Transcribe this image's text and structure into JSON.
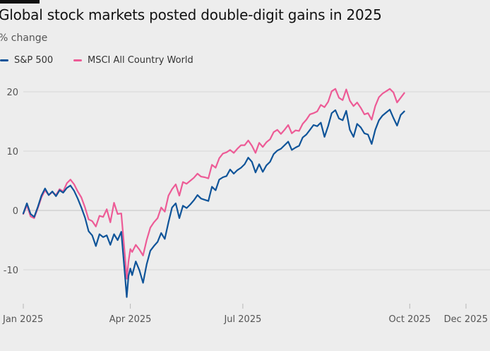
{
  "chart_data": {
    "type": "line",
    "title": "Global stock markets posted double-digit gains in 2025",
    "ylabel": "% change",
    "ylim": [
      -15,
      21
    ],
    "yticks": [
      20,
      10,
      0,
      -10
    ],
    "ytick_labels": [
      "20",
      "10",
      "0",
      "-10"
    ],
    "xticks": [
      0,
      59,
      121,
      213,
      244
    ],
    "xtick_labels": [
      "Jan 2025",
      "Apr 2025",
      "Jul 2025",
      "Oct 2025",
      "Dec 2025"
    ],
    "grid": true,
    "legend": "top-left",
    "x_unit": "trading day index",
    "series": [
      {
        "name": "S&P 500",
        "color": "#0f5499",
        "points": [
          [
            0,
            -0.5
          ],
          [
            2,
            1.2
          ],
          [
            4,
            -0.6
          ],
          [
            6,
            -1.1
          ],
          [
            8,
            0.6
          ],
          [
            10,
            2.5
          ],
          [
            12,
            3.7
          ],
          [
            14,
            2.6
          ],
          [
            16,
            3.2
          ],
          [
            18,
            2.4
          ],
          [
            20,
            3.4
          ],
          [
            22,
            3.0
          ],
          [
            24,
            3.8
          ],
          [
            26,
            4.2
          ],
          [
            28,
            3.3
          ],
          [
            30,
            2.0
          ],
          [
            32,
            0.5
          ],
          [
            34,
            -1.2
          ],
          [
            36,
            -3.5
          ],
          [
            38,
            -4.2
          ],
          [
            40,
            -6.0
          ],
          [
            42,
            -4.0
          ],
          [
            44,
            -4.5
          ],
          [
            46,
            -4.2
          ],
          [
            48,
            -5.8
          ],
          [
            50,
            -4.0
          ],
          [
            52,
            -5.0
          ],
          [
            54,
            -3.6
          ],
          [
            56,
            -10.8
          ],
          [
            57,
            -14.6
          ],
          [
            58,
            -11.0
          ],
          [
            59,
            -9.8
          ],
          [
            60,
            -10.9
          ],
          [
            62,
            -8.6
          ],
          [
            64,
            -10.1
          ],
          [
            66,
            -12.2
          ],
          [
            68,
            -9.1
          ],
          [
            70,
            -6.8
          ],
          [
            72,
            -6.0
          ],
          [
            74,
            -5.3
          ],
          [
            76,
            -3.8
          ],
          [
            78,
            -4.8
          ],
          [
            80,
            -2.0
          ],
          [
            82,
            0.5
          ],
          [
            84,
            1.2
          ],
          [
            86,
            -1.3
          ],
          [
            88,
            0.8
          ],
          [
            90,
            0.4
          ],
          [
            92,
            1.0
          ],
          [
            94,
            1.7
          ],
          [
            96,
            2.6
          ],
          [
            98,
            2.0
          ],
          [
            100,
            1.8
          ],
          [
            102,
            1.6
          ],
          [
            104,
            4.0
          ],
          [
            106,
            3.4
          ],
          [
            108,
            5.2
          ],
          [
            110,
            5.6
          ],
          [
            112,
            5.8
          ],
          [
            114,
            6.9
          ],
          [
            116,
            6.2
          ],
          [
            118,
            6.8
          ],
          [
            120,
            7.2
          ],
          [
            122,
            7.8
          ],
          [
            124,
            8.9
          ],
          [
            126,
            8.2
          ],
          [
            128,
            6.4
          ],
          [
            130,
            7.8
          ],
          [
            132,
            6.5
          ],
          [
            134,
            7.6
          ],
          [
            136,
            8.2
          ],
          [
            138,
            9.5
          ],
          [
            140,
            10.1
          ],
          [
            142,
            10.4
          ],
          [
            144,
            11.0
          ],
          [
            146,
            11.6
          ],
          [
            148,
            10.2
          ],
          [
            150,
            10.6
          ],
          [
            152,
            10.9
          ],
          [
            154,
            12.3
          ],
          [
            156,
            12.8
          ],
          [
            158,
            13.6
          ],
          [
            160,
            14.4
          ],
          [
            162,
            14.2
          ],
          [
            164,
            14.8
          ],
          [
            166,
            12.4
          ],
          [
            168,
            14.2
          ],
          [
            170,
            16.4
          ],
          [
            172,
            16.9
          ],
          [
            174,
            15.5
          ],
          [
            176,
            15.2
          ],
          [
            178,
            16.8
          ],
          [
            180,
            13.6
          ],
          [
            182,
            12.4
          ],
          [
            184,
            14.6
          ],
          [
            186,
            14.0
          ],
          [
            188,
            13.0
          ],
          [
            190,
            12.8
          ],
          [
            192,
            11.2
          ],
          [
            194,
            13.6
          ],
          [
            196,
            15.2
          ],
          [
            198,
            16.0
          ],
          [
            200,
            16.5
          ],
          [
            202,
            17.0
          ],
          [
            204,
            15.6
          ],
          [
            206,
            14.3
          ],
          [
            208,
            16.1
          ],
          [
            210,
            16.7
          ]
        ]
      },
      {
        "name": "MSCI All Country World",
        "color": "#ed5b96",
        "points": [
          [
            0,
            -0.6
          ],
          [
            2,
            0.9
          ],
          [
            4,
            -1.0
          ],
          [
            6,
            -1.3
          ],
          [
            8,
            0.4
          ],
          [
            10,
            2.2
          ],
          [
            12,
            3.4
          ],
          [
            14,
            2.6
          ],
          [
            16,
            3.1
          ],
          [
            18,
            2.6
          ],
          [
            20,
            3.6
          ],
          [
            22,
            3.2
          ],
          [
            24,
            4.6
          ],
          [
            26,
            5.2
          ],
          [
            28,
            4.4
          ],
          [
            30,
            3.2
          ],
          [
            32,
            2.2
          ],
          [
            34,
            0.5
          ],
          [
            36,
            -1.5
          ],
          [
            38,
            -1.8
          ],
          [
            40,
            -2.7
          ],
          [
            42,
            -0.9
          ],
          [
            44,
            -1.1
          ],
          [
            46,
            0.2
          ],
          [
            48,
            -2.0
          ],
          [
            50,
            1.3
          ],
          [
            52,
            -0.6
          ],
          [
            54,
            -0.5
          ],
          [
            56,
            -7.6
          ],
          [
            57,
            -11.5
          ],
          [
            58,
            -8.6
          ],
          [
            59,
            -6.5
          ],
          [
            60,
            -7.0
          ],
          [
            62,
            -5.8
          ],
          [
            64,
            -6.6
          ],
          [
            66,
            -7.6
          ],
          [
            68,
            -5.0
          ],
          [
            70,
            -2.9
          ],
          [
            72,
            -2.0
          ],
          [
            74,
            -1.3
          ],
          [
            76,
            0.5
          ],
          [
            78,
            -0.2
          ],
          [
            80,
            2.5
          ],
          [
            82,
            3.6
          ],
          [
            84,
            4.4
          ],
          [
            86,
            2.5
          ],
          [
            88,
            4.8
          ],
          [
            90,
            4.5
          ],
          [
            92,
            5.0
          ],
          [
            94,
            5.5
          ],
          [
            96,
            6.2
          ],
          [
            98,
            5.7
          ],
          [
            100,
            5.6
          ],
          [
            102,
            5.4
          ],
          [
            104,
            7.7
          ],
          [
            106,
            7.2
          ],
          [
            108,
            8.8
          ],
          [
            110,
            9.6
          ],
          [
            112,
            9.8
          ],
          [
            114,
            10.2
          ],
          [
            116,
            9.7
          ],
          [
            118,
            10.4
          ],
          [
            120,
            11.0
          ],
          [
            122,
            11.0
          ],
          [
            124,
            11.8
          ],
          [
            126,
            10.9
          ],
          [
            128,
            9.7
          ],
          [
            130,
            11.4
          ],
          [
            132,
            10.7
          ],
          [
            134,
            11.5
          ],
          [
            136,
            12.0
          ],
          [
            138,
            13.2
          ],
          [
            140,
            13.6
          ],
          [
            142,
            12.9
          ],
          [
            144,
            13.6
          ],
          [
            146,
            14.4
          ],
          [
            148,
            13.0
          ],
          [
            150,
            13.5
          ],
          [
            152,
            13.4
          ],
          [
            154,
            14.6
          ],
          [
            156,
            15.3
          ],
          [
            158,
            16.2
          ],
          [
            160,
            16.4
          ],
          [
            162,
            16.7
          ],
          [
            164,
            17.8
          ],
          [
            166,
            17.4
          ],
          [
            168,
            18.3
          ],
          [
            170,
            20.1
          ],
          [
            172,
            20.5
          ],
          [
            174,
            19.0
          ],
          [
            176,
            18.6
          ],
          [
            178,
            20.4
          ],
          [
            180,
            18.5
          ],
          [
            182,
            17.6
          ],
          [
            184,
            18.2
          ],
          [
            186,
            17.3
          ],
          [
            188,
            16.2
          ],
          [
            190,
            16.4
          ],
          [
            192,
            15.3
          ],
          [
            194,
            17.6
          ],
          [
            196,
            19.1
          ],
          [
            198,
            19.7
          ],
          [
            200,
            20.1
          ],
          [
            202,
            20.5
          ],
          [
            204,
            19.9
          ],
          [
            206,
            18.2
          ],
          [
            208,
            19.0
          ],
          [
            210,
            19.8
          ]
        ]
      }
    ]
  }
}
